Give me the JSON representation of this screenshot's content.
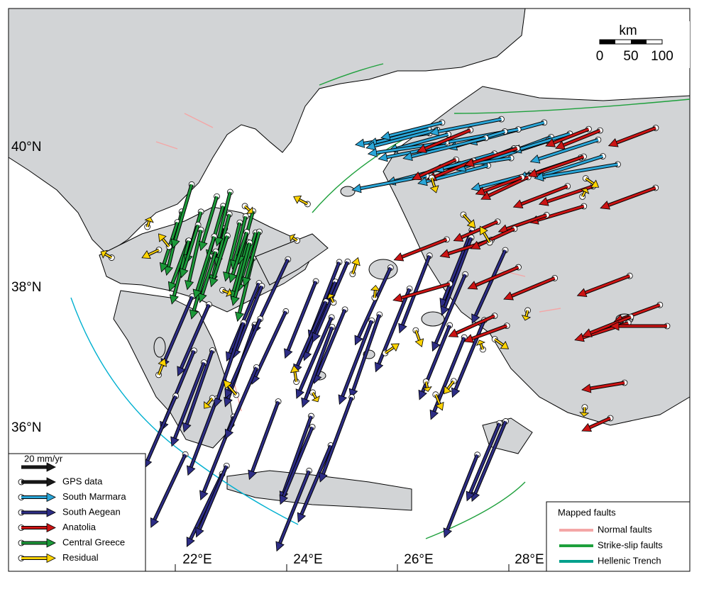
{
  "scale_bar": {
    "unit": "km",
    "labels": [
      "0",
      "50",
      "100"
    ]
  },
  "latitude_labels": [
    "40°N",
    "38°N",
    "36°N"
  ],
  "longitude_labels": [
    "22°E",
    "24°E",
    "26°E",
    "28°E"
  ],
  "velocity_legend": {
    "scale": "20 mm/yr",
    "entries": [
      "GPS data",
      "South Marmara",
      "South Aegean",
      "Anatolia",
      "Central Greece",
      "Residual"
    ]
  },
  "fault_legend": {
    "title": "Mapped faults",
    "entries": [
      "Normal faults",
      "Strike-slip faults",
      "Hellenic Trench"
    ]
  }
}
